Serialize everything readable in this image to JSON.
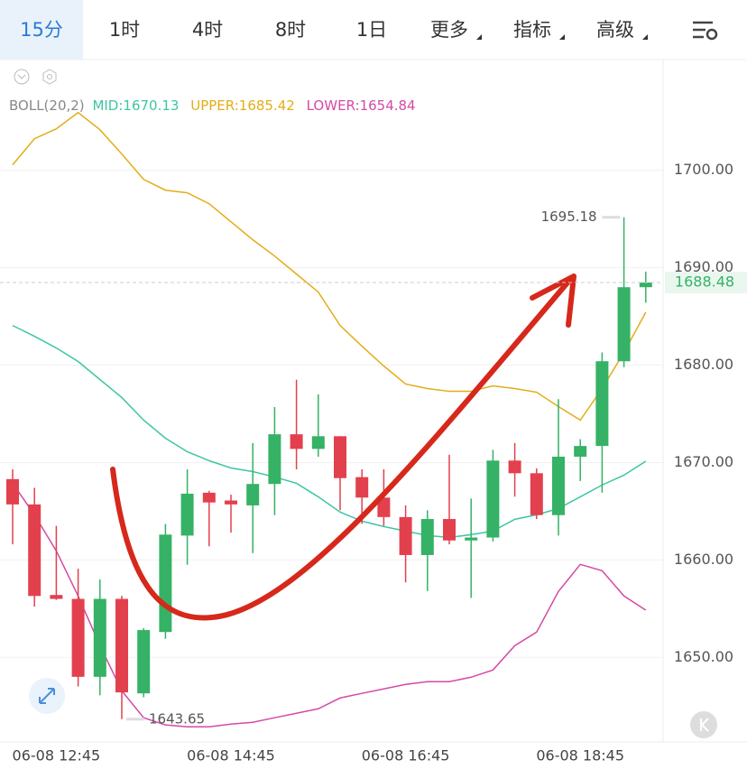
{
  "tabs": [
    "15分",
    "1时",
    "4时",
    "8时",
    "1日",
    "更多",
    "指标",
    "高级"
  ],
  "chart_data": {
    "type": "candlestick",
    "indicator": "BOLL(20,2)",
    "categories": [
      null,
      null,
      "06-08 12:45",
      null,
      null,
      null,
      null,
      null,
      null,
      null,
      "06-08 14:45",
      null,
      null,
      null,
      null,
      null,
      null,
      null,
      "06-08 16:45",
      null,
      null,
      null,
      null,
      null,
      null,
      null,
      "06-08 18:45",
      null,
      null,
      null
    ],
    "open": [
      1668.3,
      1665.7,
      1656.4,
      1656.0,
      1648.0,
      1656.0,
      1646.3,
      1652.6,
      1662.5,
      1666.9,
      1666.1,
      1665.6,
      1667.8,
      1672.9,
      1671.4,
      1672.7,
      1668.5,
      1666.4,
      1664.4,
      1660.5,
      1664.2,
      1662.0,
      1662.3,
      1670.2,
      1668.9,
      1664.6,
      1670.6,
      1671.7,
      1680.4,
      1688.0
    ],
    "high": [
      1669.3,
      1667.4,
      1663.5,
      1659.1,
      1658.0,
      1656.3,
      1653.0,
      1663.7,
      1669.3,
      1667.1,
      1666.7,
      1672.0,
      1675.7,
      1678.5,
      1677.0,
      1672.7,
      1669.3,
      1669.3,
      1665.6,
      1665.1,
      1670.8,
      1666.3,
      1671.3,
      1672.0,
      1669.4,
      1676.5,
      1672.4,
      1681.3,
      1695.18,
      1689.6
    ],
    "low": [
      1661.6,
      1655.2,
      1655.9,
      1647.0,
      1646.1,
      1643.65,
      1645.9,
      1651.9,
      1659.5,
      1661.4,
      1662.8,
      1660.7,
      1664.6,
      1669.3,
      1670.6,
      1665.1,
      1663.7,
      1663.5,
      1657.7,
      1656.8,
      1661.6,
      1656.1,
      1661.9,
      1666.5,
      1664.2,
      1662.5,
      1668.1,
      1666.9,
      1679.8,
      1686.4
    ],
    "close": [
      1665.7,
      1656.3,
      1656.0,
      1648.0,
      1656.0,
      1646.4,
      1652.8,
      1662.6,
      1666.8,
      1665.9,
      1665.7,
      1667.8,
      1672.9,
      1671.4,
      1672.7,
      1668.4,
      1666.4,
      1664.4,
      1660.5,
      1664.2,
      1662.0,
      1662.3,
      1670.2,
      1668.9,
      1664.6,
      1670.6,
      1671.7,
      1680.4,
      1688.0,
      1688.48
    ],
    "up_color": "#35b265",
    "down_color": "#e3404e",
    "series": [
      {
        "name": "MID:",
        "color": "#3dc6a4",
        "values": [
          1684.07,
          1682.96,
          1681.76,
          1680.37,
          1678.52,
          1676.67,
          1674.35,
          1672.5,
          1671.11,
          1670.19,
          1669.44,
          1669.07,
          1668.52,
          1667.87,
          1666.48,
          1664.91,
          1663.98,
          1663.43,
          1662.96,
          1662.5,
          1662.31,
          1662.59,
          1662.96,
          1664.17,
          1664.63,
          1665.28,
          1666.48,
          1667.69,
          1668.7,
          1670.13
        ]
      },
      {
        "name": "UPPER:",
        "color": "#e3ad17",
        "values": [
          1700.56,
          1703.24,
          1704.26,
          1705.93,
          1704.17,
          1701.67,
          1699.07,
          1697.96,
          1697.69,
          1696.57,
          1694.72,
          1692.87,
          1691.2,
          1689.35,
          1687.5,
          1684.07,
          1681.94,
          1679.91,
          1678.06,
          1677.59,
          1677.31,
          1677.31,
          1677.87,
          1677.59,
          1677.22,
          1675.74,
          1674.35,
          1677.59,
          1681.3,
          1685.42
        ]
      },
      {
        "name": "LOWER:",
        "color": "#d54aa5",
        "values": [
          1667.87,
          1664.63,
          1660.93,
          1656.3,
          1651.2,
          1646.57,
          1643.8,
          1643.06,
          1642.87,
          1642.87,
          1643.15,
          1643.33,
          1643.8,
          1644.26,
          1644.72,
          1645.83,
          1646.3,
          1646.76,
          1647.22,
          1647.5,
          1647.5,
          1647.96,
          1648.7,
          1651.2,
          1652.59,
          1656.76,
          1659.54,
          1658.89,
          1656.3,
          1654.84
        ]
      }
    ],
    "ylim": [
      1641.5,
      1711
    ],
    "yticks": [
      {
        "value": 1650,
        "label": "1650.00"
      },
      {
        "value": 1660,
        "label": "1660.00"
      },
      {
        "value": 1670,
        "label": "1670.00"
      },
      {
        "value": 1680,
        "label": "1680.00"
      },
      {
        "value": 1690,
        "label": "1690.00"
      },
      {
        "value": 1700,
        "label": "1700.00"
      }
    ],
    "grid": true
  }
}
